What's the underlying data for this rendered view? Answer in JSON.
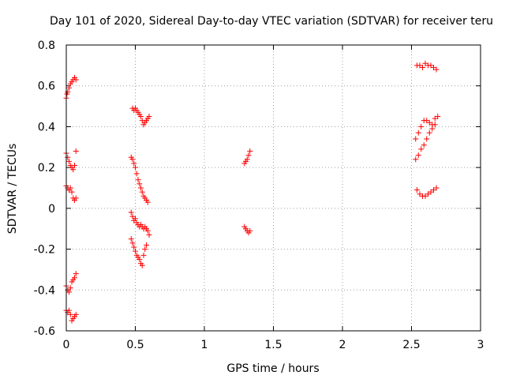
{
  "chart_data": {
    "type": "scatter",
    "title": "Day 101 of 2020, Sidereal Day-to-day VTEC variation (SDTVAR) for receiver teru",
    "xlabel": "GPS time / hours",
    "ylabel": "SDTVAR / TECUs",
    "xlim": [
      0,
      3
    ],
    "ylim": [
      -0.6,
      0.8
    ],
    "xticks": [
      0,
      0.5,
      1,
      1.5,
      2,
      2.5,
      3
    ],
    "xtick_labels": [
      "0",
      "0.5",
      "1",
      "1.5",
      "2",
      "2.5",
      "3"
    ],
    "yticks": [
      -0.6,
      -0.4,
      -0.2,
      0,
      0.2,
      0.4,
      0.6,
      0.8
    ],
    "ytick_labels": [
      "-0.6",
      "-0.4",
      "-0.2",
      "0",
      "0.2",
      "0.4",
      "0.6",
      "0.8"
    ],
    "grid": true,
    "marker": "+",
    "series": [
      {
        "name": "SDTVAR",
        "color": "#ff0000",
        "x": [
          0.0,
          0.005,
          0.01,
          0.02,
          0.03,
          0.04,
          0.05,
          0.06,
          0.07,
          0.0,
          0.01,
          0.02,
          0.03,
          0.04,
          0.05,
          0.06,
          0.07,
          0.0,
          0.01,
          0.02,
          0.03,
          0.04,
          0.05,
          0.06,
          0.07,
          0.0,
          0.01,
          0.02,
          0.03,
          0.04,
          0.05,
          0.06,
          0.07,
          0.0,
          0.01,
          0.02,
          0.03,
          0.04,
          0.05,
          0.06,
          0.07,
          0.48,
          0.49,
          0.5,
          0.51,
          0.52,
          0.53,
          0.54,
          0.55,
          0.56,
          0.57,
          0.58,
          0.59,
          0.6,
          0.47,
          0.48,
          0.49,
          0.5,
          0.51,
          0.52,
          0.53,
          0.54,
          0.55,
          0.56,
          0.57,
          0.58,
          0.59,
          0.47,
          0.48,
          0.49,
          0.5,
          0.51,
          0.52,
          0.53,
          0.54,
          0.55,
          0.56,
          0.57,
          0.58,
          0.59,
          0.6,
          0.47,
          0.48,
          0.49,
          0.5,
          0.51,
          0.52,
          0.53,
          0.54,
          0.55,
          0.56,
          0.57,
          0.58,
          1.29,
          1.3,
          1.31,
          1.32,
          1.33,
          1.29,
          1.3,
          1.31,
          1.32,
          1.33,
          2.54,
          2.56,
          2.58,
          2.6,
          2.62,
          2.64,
          2.66,
          2.68,
          2.53,
          2.55,
          2.57,
          2.59,
          2.61,
          2.63,
          2.65,
          2.67,
          2.53,
          2.55,
          2.57,
          2.59,
          2.61,
          2.63,
          2.65,
          2.67,
          2.69,
          2.54,
          2.56,
          2.58,
          2.6,
          2.62,
          2.64,
          2.66,
          2.68
        ],
        "y": [
          0.54,
          0.56,
          0.57,
          0.59,
          0.61,
          0.62,
          0.63,
          0.64,
          0.63,
          0.27,
          0.25,
          0.23,
          0.21,
          0.2,
          0.19,
          0.21,
          0.28,
          0.11,
          0.1,
          0.09,
          0.1,
          0.08,
          0.05,
          0.04,
          0.05,
          -0.38,
          -0.4,
          -0.41,
          -0.39,
          -0.36,
          -0.35,
          -0.34,
          -0.32,
          -0.5,
          -0.51,
          -0.5,
          -0.52,
          -0.55,
          -0.54,
          -0.53,
          -0.52,
          0.49,
          0.48,
          0.49,
          0.48,
          0.47,
          0.46,
          0.45,
          0.43,
          0.41,
          0.42,
          0.43,
          0.44,
          0.45,
          0.25,
          0.24,
          0.22,
          0.2,
          0.17,
          0.14,
          0.12,
          0.1,
          0.08,
          0.06,
          0.05,
          0.04,
          0.03,
          -0.02,
          -0.04,
          -0.06,
          -0.05,
          -0.07,
          -0.08,
          -0.09,
          -0.08,
          -0.09,
          -0.1,
          -0.09,
          -0.1,
          -0.11,
          -0.13,
          -0.15,
          -0.17,
          -0.19,
          -0.21,
          -0.23,
          -0.24,
          -0.25,
          -0.27,
          -0.28,
          -0.23,
          -0.2,
          -0.18,
          -0.09,
          -0.1,
          -0.11,
          -0.12,
          -0.11,
          0.22,
          0.23,
          0.24,
          0.26,
          0.28,
          0.7,
          0.7,
          0.69,
          0.71,
          0.7,
          0.7,
          0.69,
          0.68,
          0.24,
          0.26,
          0.29,
          0.31,
          0.34,
          0.37,
          0.39,
          0.41,
          0.34,
          0.37,
          0.4,
          0.43,
          0.43,
          0.42,
          0.41,
          0.44,
          0.45,
          0.09,
          0.07,
          0.06,
          0.06,
          0.07,
          0.08,
          0.09,
          0.1
        ]
      }
    ]
  }
}
